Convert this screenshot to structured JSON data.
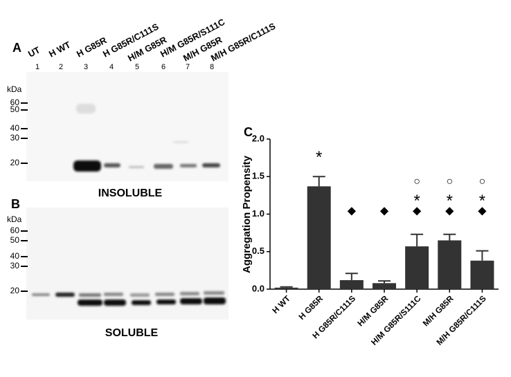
{
  "panels": {
    "a": "A",
    "b": "B",
    "c": "C"
  },
  "blots": {
    "lanes": [
      "UT",
      "H WT",
      "H G85R",
      "H G85R/C111S",
      "H/M G85R",
      "H/M G85R/S111C",
      "M/H G85R",
      "M/H G85R/C111S"
    ],
    "lane_numbers": [
      1,
      2,
      3,
      4,
      5,
      6,
      7,
      8
    ],
    "unit": "kDa",
    "markers_a": [
      60,
      50,
      40,
      30,
      20
    ],
    "markers_b": [
      60,
      50,
      40,
      30,
      20
    ],
    "label_a": "INSOLUBLE",
    "label_b": "SOLUBLE"
  },
  "chart_data": {
    "type": "bar",
    "ylabel": "Aggregation Propensity",
    "categories": [
      "H WT",
      "H G85R",
      "H G85R/C111S",
      "H/M G85R",
      "H/M G85R/S111C",
      "M/H G85R",
      "M/H G85R/C111S"
    ],
    "values": [
      0.02,
      1.37,
      0.12,
      0.08,
      0.57,
      0.65,
      0.38
    ],
    "errors": [
      0.01,
      0.13,
      0.09,
      0.03,
      0.16,
      0.08,
      0.13
    ],
    "color": "#333333",
    "ylim": [
      0,
      2.0
    ],
    "yticks": [
      {
        "value": 0,
        "label": "0.0"
      },
      {
        "value": 0.5,
        "label": "0.5"
      },
      {
        "value": 1,
        "label": "1.0"
      },
      {
        "value": 1.5,
        "label": "1.5"
      },
      {
        "value": 2,
        "label": "2.0"
      }
    ],
    "annotations": [
      {
        "text": "*",
        "category": 1,
        "y": 1.8
      },
      {
        "text": "◆",
        "category": 2,
        "y": 1.04
      },
      {
        "text": "◆",
        "category": 3,
        "y": 1.04
      },
      {
        "text": "◆",
        "category": 4,
        "y": 1.04
      },
      {
        "text": "◆",
        "category": 5,
        "y": 1.04
      },
      {
        "text": "◆",
        "category": 6,
        "y": 1.04
      },
      {
        "text": "*",
        "category": 4,
        "y": 1.22
      },
      {
        "text": "*",
        "category": 5,
        "y": 1.22
      },
      {
        "text": "*",
        "category": 6,
        "y": 1.22
      },
      {
        "text": "○",
        "category": 4,
        "y": 1.43
      },
      {
        "text": "○",
        "category": 5,
        "y": 1.43
      },
      {
        "text": "○",
        "category": 6,
        "y": 1.43
      }
    ]
  }
}
